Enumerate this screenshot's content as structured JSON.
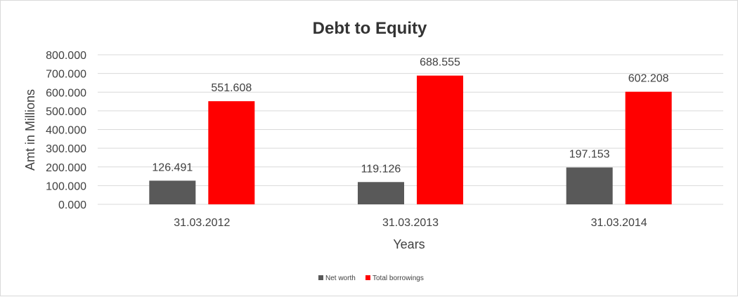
{
  "chart_data": {
    "type": "bar",
    "title": "Debt to Equity",
    "xlabel": "Years",
    "ylabel": "Amt in Millions",
    "categories": [
      "31.03.2012",
      "31.03.2013",
      "31.03.2014"
    ],
    "series": [
      {
        "name": "Net worth",
        "values": [
          126.491,
          119.126,
          197.153
        ],
        "color": "#595959"
      },
      {
        "name": "Total borrowings",
        "values": [
          551.608,
          688.555,
          602.208
        ],
        "color": "#ff0000"
      }
    ],
    "ylim": [
      0,
      800
    ],
    "yticks": [
      "0.000",
      "100.000",
      "200.000",
      "300.000",
      "400.000",
      "500.000",
      "600.000",
      "700.000",
      "800.000"
    ],
    "data_labels": [
      [
        "126.491",
        "119.126",
        "197.153"
      ],
      [
        "551.608",
        "688.555",
        "602.208"
      ]
    ],
    "grid": true,
    "legend_position": "bottom",
    "gridline_color": "#d9d9d9"
  }
}
